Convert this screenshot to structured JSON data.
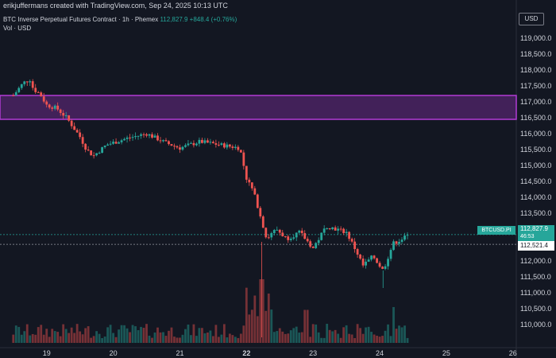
{
  "header": {
    "credit": "erikjuffermans created with TradingView.com, Sep 24, 2025 10:13 UTC",
    "symbol": "BTC Inverse Perpetual Futures Contract · 1h · Phemex",
    "last_price": "112,827.9",
    "change": "+848.4 (+0.76%)",
    "vol_label": "Vol · USD"
  },
  "currency_button": "USD",
  "last_price_tag": "BTCUSD.PI",
  "price_tag": {
    "price": "112,827.9",
    "countdown": "46:53"
  },
  "ref_price_tag": "112,521.4",
  "colors": {
    "up": "#26a69a",
    "down": "#ef5350",
    "zone_border": "#b13bd6",
    "zone_fill": "#6a2a86"
  },
  "chart_data": {
    "type": "candlestick",
    "y_axis": {
      "labels": [
        "119,000.0",
        "118,500.0",
        "118,000.0",
        "117,500.0",
        "117,000.0",
        "116,500.0",
        "116,000.0",
        "115,500.0",
        "115,000.0",
        "114,500.0",
        "114,000.0",
        "113,500.0",
        "113,000.0",
        "112,500.0",
        "112,000.0",
        "111,500.0",
        "111,000.0",
        "110,500.0",
        "110,000.0"
      ],
      "range": [
        109600,
        119300
      ]
    },
    "x_axis": {
      "labels": [
        "19",
        "20",
        "21",
        "22",
        "23",
        "24",
        "25",
        "26"
      ],
      "bold_label": "22"
    },
    "zone": {
      "low": 116450,
      "high": 117200
    },
    "ref_lines": [
      112828,
      112521
    ],
    "price_path": [
      {
        "x": 18.5,
        "y": 117200
      },
      {
        "x": 18.65,
        "y": 117600
      },
      {
        "x": 18.75,
        "y": 117700
      },
      {
        "x": 18.8,
        "y": 117400
      },
      {
        "x": 18.9,
        "y": 117250
      },
      {
        "x": 19.0,
        "y": 116900
      },
      {
        "x": 19.15,
        "y": 116800
      },
      {
        "x": 19.3,
        "y": 116500
      },
      {
        "x": 19.5,
        "y": 115900
      },
      {
        "x": 19.6,
        "y": 115500
      },
      {
        "x": 19.7,
        "y": 115300
      },
      {
        "x": 19.9,
        "y": 115650
      },
      {
        "x": 20.2,
        "y": 115850
      },
      {
        "x": 20.5,
        "y": 116000
      },
      {
        "x": 20.8,
        "y": 115700
      },
      {
        "x": 21.0,
        "y": 115550
      },
      {
        "x": 21.3,
        "y": 115750
      },
      {
        "x": 21.6,
        "y": 115650
      },
      {
        "x": 21.9,
        "y": 115550
      },
      {
        "x": 22.0,
        "y": 114600
      },
      {
        "x": 22.1,
        "y": 114200
      },
      {
        "x": 22.2,
        "y": 113500
      },
      {
        "x": 22.3,
        "y": 112700
      },
      {
        "x": 22.45,
        "y": 113000
      },
      {
        "x": 22.6,
        "y": 112700
      },
      {
        "x": 22.8,
        "y": 112900
      },
      {
        "x": 23.0,
        "y": 112400
      },
      {
        "x": 23.2,
        "y": 113100
      },
      {
        "x": 23.35,
        "y": 113000
      },
      {
        "x": 23.5,
        "y": 112900
      },
      {
        "x": 23.65,
        "y": 112300
      },
      {
        "x": 23.75,
        "y": 111850
      },
      {
        "x": 23.9,
        "y": 112150
      },
      {
        "x": 24.05,
        "y": 111700
      },
      {
        "x": 24.2,
        "y": 112550
      },
      {
        "x": 24.3,
        "y": 112650
      },
      {
        "x": 24.45,
        "y": 112828
      }
    ],
    "volume": {
      "baseline_spikes": [
        {
          "x": 22.23,
          "rel": 1.0
        },
        {
          "x": 22.9,
          "rel": 0.45
        },
        {
          "x": 24.2,
          "rel": 0.5
        }
      ]
    }
  }
}
